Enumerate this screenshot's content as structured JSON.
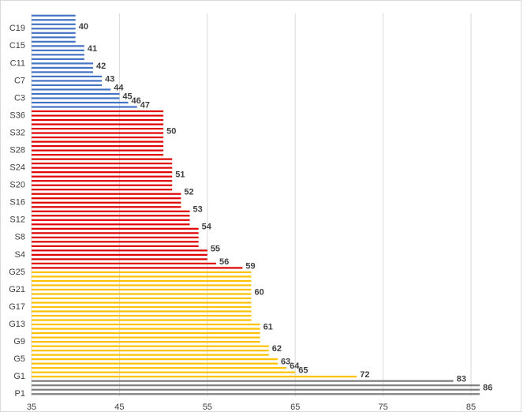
{
  "chart_data": {
    "type": "bar",
    "orientation": "horizontal",
    "categories": [
      "P1",
      null,
      null,
      null,
      "G1",
      null,
      null,
      null,
      "G5",
      null,
      null,
      null,
      "G9",
      null,
      null,
      null,
      "G13",
      null,
      null,
      null,
      "G17",
      null,
      null,
      null,
      "G21",
      null,
      null,
      null,
      "G25",
      null,
      null,
      null,
      "S4",
      null,
      null,
      null,
      "S8",
      null,
      null,
      null,
      "S12",
      null,
      null,
      null,
      "S16",
      null,
      null,
      null,
      "S20",
      null,
      null,
      null,
      "S24",
      null,
      null,
      null,
      "S28",
      null,
      null,
      null,
      "S32",
      null,
      null,
      null,
      "S36",
      null,
      null,
      null,
      "C3",
      null,
      null,
      null,
      "C7",
      null,
      null,
      null,
      "C11",
      null,
      null,
      null,
      "C15",
      null,
      null,
      null,
      "C19",
      null,
      null,
      null
    ],
    "values": [
      86,
      86,
      86,
      83,
      72,
      65,
      64,
      63,
      63,
      62,
      62,
      62,
      61,
      61,
      61,
      61,
      61,
      60,
      60,
      60,
      60,
      60,
      60,
      60,
      60,
      60,
      60,
      60,
      60,
      59,
      56,
      55,
      55,
      55,
      54,
      54,
      54,
      54,
      54,
      53,
      53,
      53,
      53,
      52,
      52,
      52,
      52,
      51,
      51,
      51,
      51,
      51,
      51,
      51,
      51,
      50,
      50,
      50,
      50,
      50,
      50,
      50,
      50,
      50,
      50,
      50,
      47,
      46,
      45,
      45,
      44,
      43,
      43,
      43,
      42,
      42,
      42,
      41,
      41,
      41,
      41,
      40,
      40,
      40,
      40,
      40,
      40,
      40
    ],
    "value_labels": [
      null,
      "86",
      null,
      "83",
      "72",
      "65",
      "64",
      "63",
      null,
      null,
      "62",
      null,
      null,
      null,
      null,
      "61",
      null,
      null,
      null,
      null,
      null,
      null,
      null,
      "60",
      null,
      null,
      null,
      null,
      null,
      "59",
      "56",
      null,
      null,
      "55",
      null,
      null,
      null,
      null,
      "54",
      null,
      null,
      null,
      "53",
      null,
      null,
      null,
      "52",
      null,
      null,
      null,
      "51",
      null,
      null,
      null,
      null,
      null,
      null,
      null,
      null,
      null,
      "50",
      null,
      null,
      null,
      null,
      null,
      "47",
      "46",
      "45",
      null,
      "44",
      null,
      "43",
      null,
      null,
      "42",
      null,
      null,
      null,
      "41",
      null,
      null,
      null,
      null,
      "40",
      null,
      null,
      null
    ],
    "colors": [
      "#7f7f7f",
      "#7f7f7f",
      "#7f7f7f",
      "#7f7f7f",
      "#ffc000",
      "#ffc000",
      "#ffc000",
      "#ffc000",
      "#ffc000",
      "#ffc000",
      "#ffc000",
      "#ffc000",
      "#ffc000",
      "#ffc000",
      "#ffc000",
      "#ffc000",
      "#ffc000",
      "#ffc000",
      "#ffc000",
      "#ffc000",
      "#ffc000",
      "#ffc000",
      "#ffc000",
      "#ffc000",
      "#ffc000",
      "#ffc000",
      "#ffc000",
      "#ffc000",
      "#ffc000",
      "#e00000",
      "#e00000",
      "#e00000",
      "#e00000",
      "#e00000",
      "#e00000",
      "#e00000",
      "#e00000",
      "#e00000",
      "#e00000",
      "#e00000",
      "#e00000",
      "#e00000",
      "#e00000",
      "#e00000",
      "#e00000",
      "#e00000",
      "#e00000",
      "#e00000",
      "#e00000",
      "#e00000",
      "#e00000",
      "#e00000",
      "#e00000",
      "#e00000",
      "#e00000",
      "#e00000",
      "#e00000",
      "#e00000",
      "#e00000",
      "#e00000",
      "#e00000",
      "#e00000",
      "#e00000",
      "#e00000",
      "#e00000",
      "#e00000",
      "#4472c4",
      "#4472c4",
      "#4472c4",
      "#4472c4",
      "#4472c4",
      "#4472c4",
      "#4472c4",
      "#4472c4",
      "#4472c4",
      "#4472c4",
      "#4472c4",
      "#4472c4",
      "#4472c4",
      "#4472c4",
      "#4472c4",
      "#4472c4",
      "#4472c4",
      "#4472c4",
      "#4472c4",
      "#4472c4",
      "#4472c4",
      "#4472c4"
    ],
    "xlim": [
      35,
      89
    ],
    "xticks": [
      35,
      45,
      55,
      65,
      75,
      85
    ],
    "grid": true
  }
}
